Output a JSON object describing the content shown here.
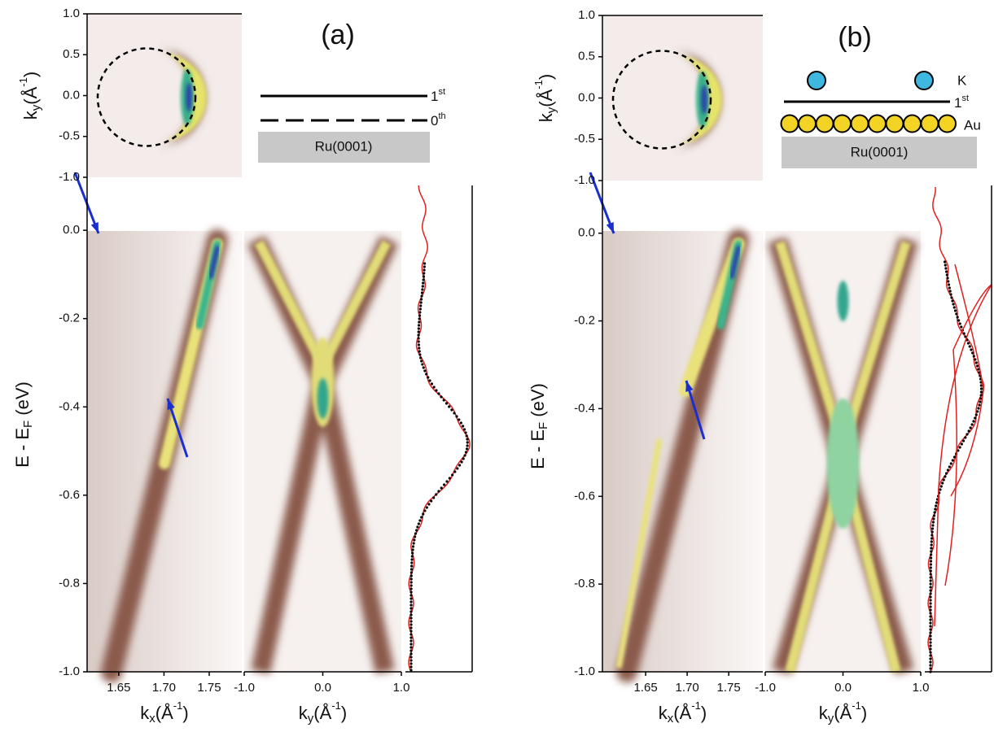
{
  "panels": [
    {
      "label": "(a)",
      "schematic": {
        "layers": [
          {
            "n": "1",
            "sup": "st"
          },
          {
            "n": "0",
            "sup": "th"
          }
        ],
        "substrate": "Ru(0001)"
      },
      "top_ylabel": {
        "main": "k",
        "sub": "y",
        "unit": "(Å",
        "sup": "-1",
        "close": ")"
      },
      "top_ylim": [
        -1,
        1
      ],
      "top_yticks": [
        {
          "value": 1,
          "label": "1.0"
        },
        0.5,
        {
          "value": 0,
          "label": "0.0"
        },
        -0.5,
        {
          "value": -1,
          "label": "-1.0"
        }
      ],
      "e_label": {
        "main": "E - E",
        "sub": "F",
        "unit": " (eV)"
      },
      "e_ylim": [
        -1,
        0.12
      ],
      "e_yticks": [
        {
          "value": 0,
          "label": "0.0"
        },
        -0.2,
        -0.4,
        -0.6,
        -0.8,
        {
          "value": -1,
          "label": "-1.0"
        }
      ],
      "kx_label": {
        "main": "k",
        "sub": "x",
        "unit": "(Å",
        "sup": "-1",
        "close": ")"
      },
      "kx_xlim": [
        1.615,
        1.786
      ],
      "kx_xticks": [
        1.65,
        {
          "value": 1.7,
          "label": "1.70"
        },
        1.75
      ],
      "ky_label": {
        "main": "k",
        "sub": "y",
        "unit": "(Å",
        "sup": "-1",
        "close": ")"
      },
      "ky_xlim": [
        -1,
        1
      ],
      "ky_xticks": [
        {
          "value": -1,
          "label": "-1.0"
        },
        {
          "value": 0,
          "label": "0.0"
        },
        {
          "value": 1,
          "label": "1.0"
        }
      ]
    },
    {
      "label": "(b)",
      "schematic": {
        "adsorbate": "K",
        "layers": [
          {
            "n": "1",
            "sup": "st"
          }
        ],
        "metal": "Au",
        "substrate": "Ru(0001)"
      },
      "top_ylabel": {
        "main": "k",
        "sub": "y",
        "unit": "(Å",
        "sup": "-1",
        "close": ")"
      },
      "top_ylim": [
        -1,
        1
      ],
      "top_yticks": [
        {
          "value": 1,
          "label": "1.0"
        },
        0.5,
        {
          "value": 0,
          "label": "0.0"
        },
        -0.5,
        {
          "value": -1,
          "label": "-1.0"
        }
      ],
      "e_label": {
        "main": "E - E",
        "sub": "F",
        "unit": " (eV)"
      },
      "e_ylim": [
        -1,
        0.12
      ],
      "e_yticks": [
        {
          "value": 0,
          "label": "0.0"
        },
        -0.2,
        -0.4,
        -0.6,
        -0.8,
        {
          "value": -1,
          "label": "-1.0"
        }
      ],
      "kx_label": {
        "main": "k",
        "sub": "x",
        "unit": "(Å",
        "sup": "-1",
        "close": ")"
      },
      "kx_xlim": [
        1.598,
        1.791
      ],
      "kx_xticks": [
        1.65,
        {
          "value": 1.7,
          "label": "1.70"
        },
        1.75
      ],
      "ky_label": {
        "main": "k",
        "sub": "y",
        "unit": "(Å",
        "sup": "-1",
        "close": ")"
      },
      "ky_xlim": [
        -1,
        1
      ],
      "ky_xticks": [
        {
          "value": -1,
          "label": "-1.0"
        },
        {
          "value": 0,
          "label": "0.0"
        },
        {
          "value": 1,
          "label": "1.0"
        }
      ]
    }
  ]
}
